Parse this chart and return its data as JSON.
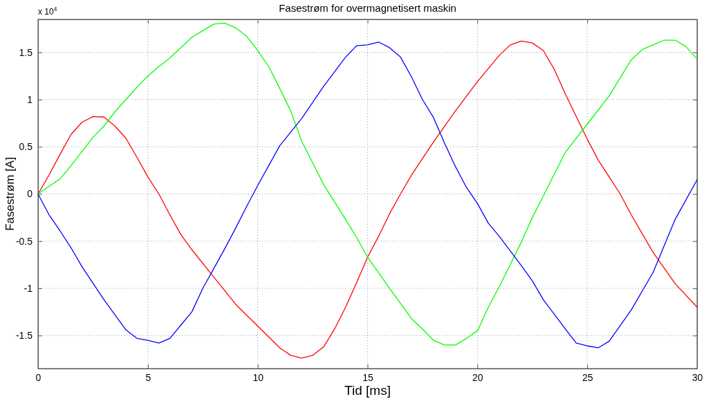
{
  "chart_data": {
    "type": "line",
    "title": "Fasestrøm for overmagnetisert maskin",
    "xlabel": "Tid [ms]",
    "ylabel": "Fasestrøm [A]",
    "annotations": [
      "x 10$^{4}$"
    ],
    "xlim": [
      0,
      30
    ],
    "xticks": [
      0,
      5,
      10,
      15,
      20,
      25,
      30
    ],
    "ylim": [
      -1.85,
      1.85
    ],
    "yticks": [
      -1.5,
      -1,
      -0.5,
      0,
      0.5,
      1,
      1.5
    ],
    "grid": true,
    "line_style": "solid",
    "marker": "none",
    "series": [
      {
        "color": "#ff0000",
        "x": [
          0,
          0.5,
          1,
          1.5,
          2,
          2.5,
          3,
          3.5,
          4,
          4.5,
          5,
          5.5,
          6,
          6.5,
          7,
          8,
          9,
          10,
          11,
          11.5,
          12,
          12.5,
          13,
          13.5,
          14,
          14.5,
          15,
          15.5,
          16,
          16.5,
          17,
          18,
          19,
          20,
          21,
          21.5,
          22,
          22.5,
          23,
          23.5,
          24,
          25,
          25.5,
          26,
          26.5,
          27,
          28,
          29,
          30
        ],
        "values": [
          0,
          0.2,
          0.42,
          0.63,
          0.76,
          0.82,
          0.815,
          0.72,
          0.59,
          0.39,
          0.18,
          0,
          -0.22,
          -0.43,
          -0.59,
          -0.88,
          -1.17,
          -1.4,
          -1.63,
          -1.71,
          -1.74,
          -1.71,
          -1.62,
          -1.43,
          -1.2,
          -0.94,
          -0.67,
          -0.45,
          -0.21,
          0,
          0.2,
          0.55,
          0.88,
          1.19,
          1.47,
          1.58,
          1.62,
          1.6,
          1.52,
          1.32,
          1.06,
          0.58,
          0.36,
          0.18,
          0,
          -0.22,
          -0.62,
          -0.95,
          -1.2
        ]
      },
      {
        "color": "#00ff00",
        "x": [
          0,
          0.5,
          1,
          1.5,
          2,
          2.5,
          3,
          3.5,
          4,
          4.5,
          5,
          5.5,
          6,
          6.5,
          7,
          7.5,
          8,
          8.5,
          9,
          9.5,
          10,
          10.5,
          11,
          11.5,
          12,
          12.5,
          13,
          14,
          14.5,
          15,
          16,
          17,
          17.5,
          18,
          18.5,
          19,
          19.5,
          20,
          20.5,
          21,
          22,
          22.5,
          23,
          24,
          25,
          26,
          27,
          27.5,
          28,
          28.5,
          29,
          29.5,
          30
        ],
        "values": [
          0,
          0.08,
          0.16,
          0.3,
          0.45,
          0.6,
          0.72,
          0.87,
          1,
          1.13,
          1.25,
          1.35,
          1.44,
          1.55,
          1.66,
          1.73,
          1.8,
          1.81,
          1.76,
          1.67,
          1.52,
          1.35,
          1.12,
          0.88,
          0.56,
          0.33,
          0.1,
          -0.27,
          -0.46,
          -0.67,
          -1,
          -1.32,
          -1.43,
          -1.55,
          -1.6,
          -1.6,
          -1.53,
          -1.45,
          -1.2,
          -0.98,
          -0.51,
          -0.25,
          -0.02,
          0.44,
          0.74,
          1.04,
          1.42,
          1.53,
          1.58,
          1.63,
          1.63,
          1.56,
          1.43
        ]
      },
      {
        "color": "#0000ff",
        "x": [
          0,
          0.5,
          1,
          1.5,
          2,
          3,
          4,
          4.5,
          5,
          5.5,
          6,
          6.5,
          7,
          7.5,
          8,
          8.5,
          9,
          9.5,
          10,
          11,
          12,
          13,
          14,
          14.5,
          15,
          15.5,
          16,
          16.5,
          17,
          17.5,
          18,
          18.5,
          19,
          19.5,
          20,
          20.5,
          21,
          22,
          22.5,
          23,
          24,
          24.5,
          25,
          25.5,
          26,
          27,
          28,
          29,
          30
        ],
        "values": [
          0,
          -0.22,
          -0.39,
          -0.57,
          -0.77,
          -1.12,
          -1.44,
          -1.53,
          -1.55,
          -1.58,
          -1.53,
          -1.39,
          -1.25,
          -1,
          -0.79,
          -0.58,
          -0.36,
          -0.13,
          0.09,
          0.51,
          0.8,
          1.14,
          1.45,
          1.57,
          1.58,
          1.61,
          1.55,
          1.45,
          1.24,
          1,
          0.81,
          0.54,
          0.29,
          0.07,
          -0.1,
          -0.31,
          -0.45,
          -0.76,
          -0.92,
          -1.12,
          -1.43,
          -1.58,
          -1.61,
          -1.63,
          -1.56,
          -1.23,
          -0.83,
          -0.27,
          0.15
        ]
      }
    ]
  }
}
